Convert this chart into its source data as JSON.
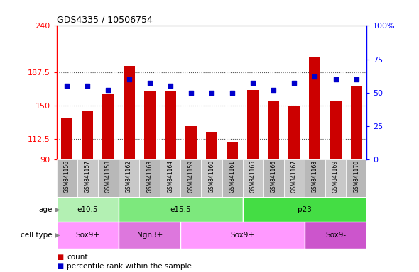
{
  "title": "GDS4335 / 10506754",
  "samples": [
    "GSM841156",
    "GSM841157",
    "GSM841158",
    "GSM841162",
    "GSM841163",
    "GSM841164",
    "GSM841159",
    "GSM841160",
    "GSM841161",
    "GSM841165",
    "GSM841166",
    "GSM841167",
    "GSM841168",
    "GSM841169",
    "GSM841170"
  ],
  "counts": [
    137,
    145,
    163,
    195,
    167,
    167,
    127,
    120,
    110,
    168,
    155,
    150,
    205,
    155,
    172
  ],
  "percentiles": [
    55,
    55,
    52,
    60,
    57,
    55,
    50,
    50,
    50,
    57,
    52,
    57,
    62,
    60,
    60
  ],
  "ymin": 90,
  "ymax": 240,
  "yticks": [
    90,
    112.5,
    150,
    187.5,
    240
  ],
  "ytick_labels": [
    "90",
    "112.5",
    "150",
    "187.5",
    "240"
  ],
  "right_yticks": [
    0,
    25,
    50,
    75,
    100
  ],
  "right_ytick_labels": [
    "0",
    "25",
    "50",
    "75",
    "100%"
  ],
  "bar_color": "#cc0000",
  "dot_color": "#0000cc",
  "age_groups": [
    {
      "label": "e10.5",
      "start": 0,
      "end": 3,
      "color": "#b3f0b3"
    },
    {
      "label": "e15.5",
      "start": 3,
      "end": 9,
      "color": "#7de87d"
    },
    {
      "label": "p23",
      "start": 9,
      "end": 15,
      "color": "#44dd44"
    }
  ],
  "cell_type_groups": [
    {
      "label": "Sox9+",
      "start": 0,
      "end": 3,
      "color": "#ff99ff"
    },
    {
      "label": "Ngn3+",
      "start": 3,
      "end": 6,
      "color": "#dd77dd"
    },
    {
      "label": "Sox9+",
      "start": 6,
      "end": 12,
      "color": "#ff99ff"
    },
    {
      "label": "Sox9-",
      "start": 12,
      "end": 15,
      "color": "#cc55cc"
    }
  ],
  "legend_count_label": "count",
  "legend_pct_label": "percentile rank within the sample",
  "grid_dotted_color": "#888888",
  "bg_color": "#ffffff",
  "tick_col_odd": "#c8c8c8",
  "tick_col_even": "#b8b8b8"
}
